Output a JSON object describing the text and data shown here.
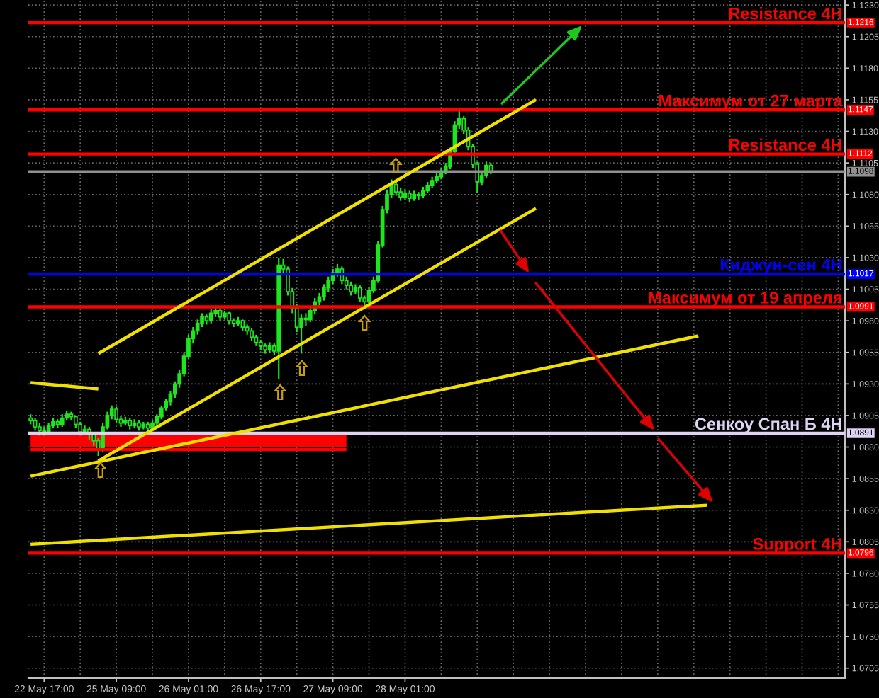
{
  "chart_data": {
    "type": "candlestick",
    "color": "#1ee61e",
    "categories": [
      null,
      null,
      null,
      "22 May 17:00",
      null,
      null,
      null,
      null,
      null,
      null,
      null,
      null,
      null,
      null,
      null,
      null,
      null,
      null,
      null,
      "25 May 09:00",
      null,
      null,
      null,
      null,
      null,
      null,
      null,
      null,
      null,
      null,
      null,
      null,
      null,
      null,
      null,
      "26 May 01:00",
      null,
      null,
      null,
      null,
      null,
      null,
      null,
      null,
      null,
      null,
      null,
      null,
      null,
      null,
      null,
      "26 May 17:00",
      null,
      null,
      null,
      null,
      null,
      null,
      null,
      null,
      null,
      null,
      null,
      null,
      null,
      null,
      null,
      "27 May 09:00",
      null,
      null,
      null,
      null,
      null,
      null,
      null,
      null,
      null,
      null,
      null,
      null,
      null,
      null,
      null,
      "28 May 01:00",
      null,
      null,
      null,
      null,
      null,
      null,
      null,
      null,
      null,
      null,
      null,
      null,
      null,
      null,
      null,
      null,
      null,
      null,
      null,
      null,
      null,
      null,
      null,
      null,
      null,
      null,
      null,
      null,
      null,
      null,
      null,
      null,
      null,
      null,
      null,
      null,
      null,
      null,
      null,
      null,
      null,
      null,
      null,
      null,
      null,
      null,
      null,
      null,
      null,
      null,
      null,
      null,
      null,
      null,
      null,
      null,
      null,
      null,
      null,
      null,
      null,
      null,
      null,
      null,
      null,
      null,
      null,
      null,
      null,
      null,
      null,
      null,
      null,
      null,
      null,
      null,
      null,
      null,
      null,
      null,
      null,
      null,
      null,
      null,
      null,
      null,
      null,
      null,
      null,
      null,
      null,
      null,
      null,
      null,
      null,
      null,
      null
    ],
    "ohlc": [
      [
        1.0903,
        1.0906,
        1.0898,
        1.0901
      ],
      [
        1.0901,
        1.0903,
        1.0893,
        1.0896
      ],
      [
        1.0896,
        1.0899,
        1.0889,
        1.0893
      ],
      [
        1.0893,
        1.0896,
        1.0889,
        1.0892
      ],
      [
        1.0892,
        1.0899,
        1.089,
        1.0897
      ],
      [
        1.0897,
        1.0903,
        1.0895,
        1.09
      ],
      [
        1.09,
        1.0902,
        1.0895,
        1.0898
      ],
      [
        1.0898,
        1.0906,
        1.0896,
        1.0903
      ],
      [
        1.0903,
        1.0909,
        1.0901,
        1.0906
      ],
      [
        1.0906,
        1.0908,
        1.0901,
        1.0904
      ],
      [
        1.0904,
        1.0905,
        1.0895,
        1.0898
      ],
      [
        1.0898,
        1.09,
        1.0889,
        1.0892
      ],
      [
        1.0892,
        1.0897,
        1.089,
        1.0894
      ],
      [
        1.0894,
        1.0896,
        1.0886,
        1.089
      ],
      [
        1.089,
        1.0892,
        1.0881,
        1.0885
      ],
      [
        1.0885,
        1.0887,
        1.0873,
        1.0878
      ],
      [
        1.0878,
        1.0899,
        1.0876,
        1.0896
      ],
      [
        1.0896,
        1.0908,
        1.0894,
        1.0905
      ],
      [
        1.0905,
        1.0913,
        1.0902,
        1.091
      ],
      [
        1.091,
        1.0912,
        1.0899,
        1.0902
      ],
      [
        1.0902,
        1.0905,
        1.0896,
        1.0899
      ],
      [
        1.0899,
        1.0904,
        1.0897,
        1.0901
      ],
      [
        1.0901,
        1.0903,
        1.0894,
        1.0897
      ],
      [
        1.0897,
        1.0902,
        1.0895,
        1.0899
      ],
      [
        1.0899,
        1.0901,
        1.0893,
        1.0896
      ],
      [
        1.0896,
        1.09,
        1.0894,
        1.0898
      ],
      [
        1.0898,
        1.09,
        1.0892,
        1.0895
      ],
      [
        1.0895,
        1.0901,
        1.0893,
        1.0899
      ],
      [
        1.0899,
        1.0906,
        1.0897,
        1.0904
      ],
      [
        1.0904,
        1.0913,
        1.0902,
        1.0911
      ],
      [
        1.0911,
        1.0918,
        1.0909,
        1.0916
      ],
      [
        1.0916,
        1.0924,
        1.0913,
        1.0922
      ],
      [
        1.0922,
        1.0932,
        1.0919,
        1.093
      ],
      [
        1.093,
        1.0941,
        1.0927,
        1.0938
      ],
      [
        1.0938,
        1.0955,
        1.0936,
        1.0952
      ],
      [
        1.0952,
        1.0969,
        1.095,
        1.0966
      ],
      [
        1.0966,
        1.0975,
        1.0962,
        1.0972
      ],
      [
        1.0972,
        1.0981,
        1.0969,
        1.0978
      ],
      [
        1.0978,
        1.0986,
        1.0975,
        1.0983
      ],
      [
        1.0983,
        1.0985,
        1.0977,
        1.098
      ],
      [
        1.098,
        1.0989,
        1.0978,
        1.0986
      ],
      [
        1.0986,
        1.0992,
        1.0983,
        1.0988
      ],
      [
        1.0988,
        1.099,
        1.098,
        1.0983
      ],
      [
        1.0983,
        1.0988,
        1.0981,
        1.0986
      ],
      [
        1.0986,
        1.0987,
        1.0977,
        1.098
      ],
      [
        1.098,
        1.0982,
        1.0975,
        1.0978
      ],
      [
        1.0978,
        1.0983,
        1.0976,
        1.098
      ],
      [
        1.098,
        1.0981,
        1.0972,
        1.0975
      ],
      [
        1.0975,
        1.0977,
        1.0969,
        1.0972
      ],
      [
        1.0972,
        1.0974,
        1.0964,
        1.0967
      ],
      [
        1.0967,
        1.0969,
        1.096,
        1.0963
      ],
      [
        1.0963,
        1.0965,
        1.0957,
        1.096
      ],
      [
        1.096,
        1.0962,
        1.0954,
        1.0957
      ],
      [
        1.0957,
        1.0963,
        1.0955,
        1.096
      ],
      [
        1.096,
        1.0962,
        1.0953,
        1.0956
      ],
      [
        1.0956,
        1.103,
        1.0934,
        1.1024
      ],
      [
        1.1024,
        1.1029,
        1.1016,
        1.1021
      ],
      [
        1.1021,
        1.1023,
        1.1,
        1.1003
      ],
      [
        1.1003,
        1.1006,
        1.0986,
        1.099
      ],
      [
        1.099,
        1.0993,
        1.0971,
        1.0975
      ],
      [
        1.0975,
        1.0985,
        1.0954,
        1.0982
      ],
      [
        1.0982,
        1.0986,
        1.0976,
        1.0981
      ],
      [
        1.0981,
        1.0991,
        1.0979,
        1.0988
      ],
      [
        1.0988,
        1.0998,
        1.0985,
        1.0995
      ],
      [
        1.0995,
        1.1002,
        1.0992,
        1.0999
      ],
      [
        1.0999,
        1.1009,
        1.0996,
        1.1006
      ],
      [
        1.1006,
        1.1015,
        1.1003,
        1.1012
      ],
      [
        1.1012,
        1.1021,
        1.1009,
        1.1018
      ],
      [
        1.1018,
        1.1025,
        1.1015,
        1.1021
      ],
      [
        1.1021,
        1.1023,
        1.1009,
        1.1012
      ],
      [
        1.1012,
        1.1015,
        1.1005,
        1.1008
      ],
      [
        1.1008,
        1.1011,
        1.1,
        1.1003
      ],
      [
        1.1003,
        1.1009,
        1.1001,
        1.1006
      ],
      [
        1.1006,
        1.1008,
        1.0995,
        1.0998
      ],
      [
        1.0998,
        1.1,
        1.0991,
        1.0995
      ],
      [
        1.0995,
        1.1007,
        1.0993,
        1.1004
      ],
      [
        1.1004,
        1.1015,
        1.1002,
        1.1012
      ],
      [
        1.1012,
        1.1043,
        1.101,
        1.104
      ],
      [
        1.104,
        1.1071,
        1.1038,
        1.1068
      ],
      [
        1.1068,
        1.1084,
        1.1065,
        1.108
      ],
      [
        1.108,
        1.1092,
        1.1077,
        1.1088
      ],
      [
        1.1088,
        1.109,
        1.1079,
        1.1082
      ],
      [
        1.1082,
        1.1085,
        1.1075,
        1.1078
      ],
      [
        1.1078,
        1.1084,
        1.1076,
        1.1081
      ],
      [
        1.1081,
        1.1083,
        1.1074,
        1.1077
      ],
      [
        1.1077,
        1.1083,
        1.1075,
        1.108
      ],
      [
        1.108,
        1.1082,
        1.1076,
        1.1079
      ],
      [
        1.1079,
        1.1086,
        1.1077,
        1.1083
      ],
      [
        1.1083,
        1.109,
        1.1081,
        1.1087
      ],
      [
        1.1087,
        1.1094,
        1.1085,
        1.1091
      ],
      [
        1.1091,
        1.1097,
        1.1089,
        1.1094
      ],
      [
        1.1094,
        1.1101,
        1.1092,
        1.1098
      ],
      [
        1.1098,
        1.1105,
        1.1096,
        1.1102
      ],
      [
        1.1102,
        1.1117,
        1.11,
        1.1114
      ],
      [
        1.1114,
        1.1138,
        1.1112,
        1.1135
      ],
      [
        1.1135,
        1.1146,
        1.1132,
        1.114
      ],
      [
        1.114,
        1.1142,
        1.1128,
        1.1131
      ],
      [
        1.1131,
        1.1133,
        1.1115,
        1.1118
      ],
      [
        1.1118,
        1.112,
        1.1101,
        1.1104
      ],
      [
        1.1104,
        1.1106,
        1.1081,
        1.109
      ],
      [
        1.109,
        1.1098,
        1.1087,
        1.1095
      ],
      [
        1.1095,
        1.1106,
        1.1093,
        1.1103
      ],
      [
        1.1103,
        1.1105,
        1.1096,
        1.1098
      ],
      null,
      null,
      null,
      null,
      null,
      null,
      null,
      null,
      null,
      null,
      null,
      null,
      null,
      null,
      null,
      null,
      null,
      null,
      null,
      null,
      null,
      null,
      null,
      null,
      null,
      null,
      null,
      null,
      null,
      null,
      null,
      null,
      null,
      null,
      null,
      null,
      null,
      null,
      null,
      null,
      null,
      null,
      null,
      null,
      null,
      null,
      null,
      null,
      null,
      null,
      null,
      null,
      null,
      null,
      null,
      null,
      null,
      null,
      null,
      null,
      null,
      null,
      null,
      null,
      null,
      null,
      null,
      null,
      null,
      null,
      null,
      null,
      null,
      null,
      null,
      null,
      null,
      null
    ],
    "series": [
      {
        "type": "line",
        "color": "#ff0000",
        "values": [
          1.0878,
          null,
          null,
          null,
          null,
          null,
          null,
          null,
          null,
          null,
          null,
          null,
          null,
          null,
          null,
          null,
          null,
          null,
          null,
          null,
          null,
          null,
          null,
          null,
          null,
          null,
          null,
          null,
          null,
          null,
          null,
          null,
          null,
          null,
          null,
          null,
          null,
          null,
          null,
          null,
          null,
          null,
          null,
          null,
          null,
          null,
          null,
          null,
          null,
          null,
          null,
          null,
          null,
          null,
          null,
          null,
          null,
          null,
          null,
          null,
          null,
          null,
          null,
          null,
          null,
          null,
          null,
          null,
          null,
          null,
          1.0878,
          null,
          null,
          null,
          null,
          null,
          null,
          null,
          null,
          null,
          null,
          null,
          null,
          null,
          null,
          null,
          null,
          null,
          null,
          null,
          null,
          null,
          null,
          null,
          null,
          null,
          null,
          null,
          null,
          null,
          null,
          null,
          null,
          null,
          null,
          null,
          null,
          null,
          null,
          null,
          null,
          null,
          null,
          null,
          null,
          null,
          null,
          null,
          null,
          null,
          null,
          null,
          null,
          null,
          null,
          null,
          null,
          null,
          null,
          null,
          null,
          null,
          null,
          null,
          null,
          null,
          null,
          null,
          null,
          null,
          null,
          null,
          null,
          null,
          null,
          null,
          null,
          null,
          null,
          null,
          null,
          null,
          null,
          null,
          null,
          null,
          null,
          null,
          null,
          null,
          null,
          null,
          null,
          null,
          null,
          null,
          null,
          null,
          null,
          null,
          null,
          null,
          null,
          null,
          null,
          null,
          null,
          null,
          null,
          null,
          null
        ],
        "lower": [
          1.088,
          null,
          null,
          null,
          null,
          null,
          null,
          null,
          null,
          null,
          null,
          null,
          null,
          null,
          null,
          null,
          null,
          null,
          null,
          null,
          null,
          null,
          null,
          null,
          null,
          null,
          null,
          null,
          null,
          null,
          null,
          null,
          null,
          null,
          null,
          null,
          null,
          null,
          null,
          null,
          null,
          null,
          null,
          null,
          null,
          null,
          null,
          null,
          null,
          null,
          null,
          null,
          null,
          null,
          null,
          null,
          null,
          null,
          null,
          null,
          null,
          null,
          null,
          null,
          null,
          null,
          null,
          null,
          null,
          null,
          1.088,
          null,
          null,
          null,
          null,
          null,
          null,
          null,
          null,
          null,
          null,
          null,
          null,
          null,
          null,
          null,
          null,
          null,
          null,
          null,
          null,
          null,
          null,
          null,
          null,
          null,
          null,
          null,
          null,
          null,
          null,
          null,
          null,
          null,
          null,
          null,
          null,
          null,
          null,
          null,
          null,
          null,
          null,
          null,
          null,
          null,
          null,
          null,
          null,
          null,
          null,
          null,
          null,
          null,
          null,
          null,
          null,
          null,
          null,
          null,
          null,
          null,
          null,
          null,
          null,
          null,
          null,
          null,
          null,
          null,
          null,
          null,
          null,
          null,
          null,
          null,
          null,
          null,
          null,
          null,
          null,
          null,
          null,
          null,
          null,
          null,
          null,
          null,
          null,
          null,
          null,
          null,
          null,
          null,
          null,
          null,
          null,
          null,
          null,
          null,
          null,
          null,
          null,
          null,
          null,
          null,
          null,
          null,
          null,
          null,
          null
        ],
        "upper": [
          1.0892,
          null,
          null,
          null,
          null,
          null,
          null,
          null,
          null,
          null,
          null,
          null,
          null,
          null,
          null,
          null,
          null,
          null,
          null,
          null,
          null,
          null,
          null,
          null,
          null,
          null,
          null,
          null,
          null,
          null,
          null,
          null,
          null,
          null,
          null,
          null,
          null,
          null,
          null,
          null,
          null,
          null,
          null,
          null,
          null,
          null,
          null,
          null,
          null,
          null,
          null,
          null,
          null,
          null,
          null,
          null,
          null,
          null,
          null,
          null,
          null,
          null,
          null,
          null,
          null,
          null,
          null,
          null,
          null,
          null,
          1.0892,
          null,
          null,
          null,
          null,
          null,
          null,
          null,
          null,
          null,
          null,
          null,
          null,
          null,
          null,
          null,
          null,
          null,
          null,
          null,
          null,
          null,
          null,
          null,
          null,
          null,
          null,
          null,
          null,
          null,
          null,
          null,
          null,
          null,
          null,
          null,
          null,
          null,
          null,
          null,
          null,
          null,
          null,
          null,
          null,
          null,
          null,
          null,
          null,
          null,
          null,
          null,
          null,
          null,
          null,
          null,
          null,
          null,
          null,
          null,
          null,
          null,
          null,
          null,
          null,
          null,
          null,
          null,
          null,
          null,
          null,
          null,
          null,
          null,
          null,
          null,
          null,
          null,
          null,
          null,
          null,
          null,
          null,
          null,
          null,
          null,
          null,
          null,
          null,
          null,
          null,
          null,
          null,
          null,
          null,
          null,
          null,
          null,
          null,
          null,
          null,
          null,
          null,
          null,
          null,
          null,
          null,
          null,
          null,
          null,
          null
        ]
      },
      {
        "type": "line",
        "color": "#f0e000",
        "values": [
          null,
          null,
          null,
          null,
          null,
          null,
          null,
          null,
          null,
          null,
          null,
          null,
          null,
          null,
          null,
          1.0954,
          null,
          null,
          null,
          null,
          null,
          null,
          null,
          null,
          null,
          null,
          null,
          null,
          null,
          null,
          null,
          null,
          null,
          null,
          null,
          null,
          null,
          null,
          null,
          null,
          null,
          null,
          null,
          null,
          null,
          null,
          null,
          null,
          null,
          null,
          null,
          null,
          null,
          null,
          null,
          null,
          null,
          null,
          null,
          null,
          null,
          null,
          null,
          null,
          null,
          null,
          null,
          null,
          null,
          null,
          null,
          null,
          null,
          null,
          null,
          null,
          null,
          null,
          null,
          null,
          null,
          null,
          null,
          null,
          null,
          null,
          null,
          null,
          null,
          null,
          null,
          null,
          null,
          null,
          null,
          null,
          null,
          null,
          null,
          null,
          null,
          null,
          null,
          null,
          null,
          null,
          null,
          null,
          null,
          null,
          null,
          null,
          1.1155,
          null,
          null,
          null,
          null,
          null,
          null,
          null,
          null,
          null,
          null,
          null,
          null,
          null,
          null,
          null,
          null,
          null,
          null,
          null,
          null,
          null,
          null,
          null,
          null,
          null,
          null,
          null,
          null,
          null,
          null,
          null,
          null,
          null,
          null,
          null,
          null,
          null,
          null,
          null,
          null,
          null,
          null,
          null,
          null,
          null,
          null,
          null,
          null,
          null,
          null,
          null,
          null,
          null,
          null,
          null,
          null,
          null,
          null,
          null,
          null,
          null,
          null,
          null,
          null,
          null,
          null,
          null,
          null
        ]
      },
      {
        "type": "line",
        "color": "#f0e000",
        "values": [
          null,
          null,
          null,
          null,
          null,
          null,
          null,
          null,
          null,
          null,
          null,
          null,
          null,
          null,
          null,
          1.0869,
          null,
          null,
          null,
          null,
          null,
          null,
          null,
          null,
          null,
          null,
          null,
          null,
          null,
          null,
          null,
          null,
          null,
          null,
          null,
          null,
          null,
          null,
          null,
          null,
          null,
          null,
          null,
          null,
          null,
          null,
          null,
          null,
          null,
          null,
          null,
          null,
          null,
          null,
          null,
          null,
          null,
          null,
          null,
          null,
          null,
          null,
          null,
          null,
          null,
          null,
          null,
          null,
          null,
          null,
          null,
          null,
          null,
          null,
          null,
          null,
          null,
          null,
          null,
          null,
          null,
          null,
          null,
          null,
          null,
          null,
          null,
          null,
          null,
          null,
          null,
          null,
          null,
          null,
          null,
          null,
          null,
          null,
          null,
          null,
          null,
          null,
          null,
          null,
          null,
          null,
          null,
          null,
          null,
          null,
          null,
          null,
          1.1069,
          null,
          null,
          null,
          null,
          null,
          null,
          null,
          null,
          null,
          null,
          null,
          null,
          null,
          null,
          null,
          null,
          null,
          null,
          null,
          null,
          null,
          null,
          null,
          null,
          null,
          null,
          null,
          null,
          null,
          null,
          null,
          null,
          null,
          null,
          null,
          null,
          null,
          null,
          null,
          null,
          null,
          null,
          null,
          null,
          null,
          null,
          null,
          null,
          null,
          null,
          null,
          null,
          null,
          null,
          null,
          null,
          null,
          null,
          null,
          null,
          null,
          null,
          null,
          null,
          null,
          null,
          null,
          null
        ]
      },
      {
        "type": "line",
        "color": "#f0e000",
        "values": [
          1.0857,
          null,
          null,
          null,
          null,
          null,
          null,
          null,
          null,
          null,
          null,
          null,
          null,
          null,
          null,
          null,
          null,
          null,
          null,
          null,
          null,
          null,
          null,
          null,
          null,
          null,
          null,
          null,
          null,
          null,
          null,
          null,
          null,
          null,
          null,
          null,
          null,
          null,
          null,
          null,
          null,
          null,
          null,
          null,
          null,
          null,
          null,
          null,
          null,
          null,
          null,
          null,
          null,
          null,
          null,
          null,
          null,
          null,
          null,
          null,
          null,
          null,
          null,
          null,
          null,
          null,
          null,
          null,
          null,
          null,
          null,
          null,
          null,
          null,
          null,
          null,
          null,
          null,
          null,
          null,
          null,
          null,
          null,
          null,
          null,
          null,
          null,
          null,
          null,
          null,
          null,
          null,
          null,
          null,
          null,
          null,
          null,
          null,
          null,
          null,
          null,
          null,
          null,
          null,
          null,
          null,
          null,
          null,
          null,
          null,
          null,
          null,
          null,
          null,
          null,
          null,
          null,
          null,
          null,
          null,
          null,
          null,
          null,
          null,
          null,
          null,
          null,
          null,
          null,
          null,
          null,
          null,
          null,
          null,
          null,
          null,
          null,
          null,
          null,
          null,
          null,
          null,
          null,
          null,
          null,
          null,
          null,
          null,
          1.0968,
          null,
          null,
          null,
          null,
          null,
          null,
          null,
          null,
          null,
          null,
          null,
          null,
          null,
          null,
          null,
          null,
          null,
          null,
          null,
          null,
          null,
          null,
          null,
          null,
          null,
          null,
          null,
          null,
          null,
          null,
          null,
          null
        ]
      },
      {
        "type": "line",
        "color": "#f0e000",
        "values": [
          1.0931,
          null,
          null,
          null,
          null,
          null,
          null,
          null,
          null,
          null,
          null,
          null,
          null,
          null,
          null,
          1.0926,
          null,
          null,
          null,
          null,
          null,
          null,
          null,
          null,
          null,
          null,
          null,
          null,
          null,
          null,
          null,
          null,
          null,
          null,
          null,
          null,
          null,
          null,
          null,
          null,
          null,
          null,
          null,
          null,
          null,
          null,
          null,
          null,
          null,
          null,
          null,
          null,
          null,
          null,
          null,
          null,
          null,
          null,
          null,
          null,
          null,
          null,
          null,
          null,
          null,
          null,
          null,
          null,
          null,
          null,
          null,
          null,
          null,
          null,
          null,
          null,
          null,
          null,
          null,
          null,
          null,
          null,
          null,
          null,
          null,
          null,
          null,
          null,
          null,
          null,
          null,
          null,
          null,
          null,
          null,
          null,
          null,
          null,
          null,
          null,
          null,
          null,
          null,
          null,
          null,
          null,
          null,
          null,
          null,
          null,
          null,
          null,
          null,
          null,
          null,
          null,
          null,
          null,
          null,
          null,
          null,
          null,
          null,
          null,
          null,
          null,
          null,
          null,
          null,
          null,
          null,
          null,
          null,
          null,
          null,
          null,
          null,
          null,
          null,
          null,
          null,
          null,
          null,
          null,
          null,
          null,
          null,
          null,
          null,
          null,
          null,
          null,
          null,
          null,
          null,
          null,
          null,
          null,
          null,
          null,
          null,
          null,
          null,
          null,
          null,
          null,
          null,
          null,
          null,
          null,
          null,
          null,
          null,
          null,
          null,
          null,
          null,
          null,
          null,
          null,
          null
        ]
      },
      {
        "type": "line",
        "color": "#f0e000",
        "values": [
          1.0803,
          null,
          null,
          null,
          null,
          null,
          null,
          null,
          null,
          null,
          null,
          null,
          null,
          null,
          null,
          null,
          null,
          null,
          null,
          null,
          null,
          null,
          null,
          null,
          null,
          null,
          null,
          null,
          null,
          null,
          null,
          null,
          null,
          null,
          null,
          null,
          null,
          null,
          null,
          null,
          null,
          null,
          null,
          null,
          null,
          null,
          null,
          null,
          null,
          null,
          null,
          null,
          null,
          null,
          null,
          null,
          null,
          null,
          null,
          null,
          null,
          null,
          null,
          null,
          null,
          null,
          null,
          null,
          null,
          null,
          null,
          null,
          null,
          null,
          null,
          null,
          null,
          null,
          null,
          null,
          null,
          null,
          null,
          null,
          null,
          null,
          null,
          null,
          null,
          null,
          null,
          null,
          null,
          null,
          null,
          null,
          null,
          null,
          null,
          null,
          null,
          null,
          null,
          null,
          null,
          null,
          null,
          null,
          null,
          null,
          null,
          null,
          null,
          null,
          null,
          null,
          null,
          null,
          null,
          null,
          null,
          null,
          null,
          null,
          null,
          null,
          null,
          null,
          null,
          null,
          null,
          null,
          null,
          null,
          null,
          null,
          null,
          null,
          null,
          null,
          null,
          null,
          null,
          null,
          null,
          null,
          null,
          null,
          null,
          null,
          1.0834,
          null,
          null,
          null,
          null,
          null,
          null,
          null,
          null,
          null,
          null,
          null,
          null,
          null,
          null,
          null,
          null,
          null,
          null,
          null,
          null,
          null,
          null,
          null,
          null,
          null,
          null,
          null,
          null,
          null,
          null
        ]
      }
    ],
    "ref_lines": [
      {
        "axis": "y",
        "value": 1.1216,
        "label": "Resistance 4H",
        "color": "#ff0000"
      },
      {
        "axis": "y",
        "value": 1.1147,
        "label": "Максимум от 27 марта",
        "color": "#ff0000"
      },
      {
        "axis": "y",
        "value": 1.1112,
        "label": "Resistance 4H",
        "color": "#ff0000"
      },
      {
        "axis": "y",
        "value": 1.1098,
        "color": "#909090"
      },
      {
        "axis": "y",
        "value": 1.1017,
        "label": "Киджун-сен 4H",
        "color": "#0000ff"
      },
      {
        "axis": "y",
        "value": 1.0991,
        "label": "Максимум от 19 апреля",
        "color": "#ff0000"
      },
      {
        "axis": "y",
        "value": 1.0891,
        "label": "Сенкоу Спан Б 4H",
        "color": "#e0d4f4"
      },
      {
        "axis": "y",
        "value": 1.0796,
        "label": "Support 4H",
        "color": "#ff0000"
      }
    ],
    "annotations": [
      {
        "text": "1.1216",
        "y": 1.1216
      },
      {
        "text": "1.1147",
        "y": 1.1147
      },
      {
        "text": "1.1112",
        "y": 1.1112
      },
      {
        "text": "1.1098",
        "y": 1.1098
      },
      {
        "text": "1.1017",
        "y": 1.1017
      },
      {
        "text": "1.0991",
        "y": 1.0991
      },
      {
        "text": "1.0891",
        "y": 1.0891
      },
      {
        "text": "1.0796",
        "y": 1.0796
      }
    ],
    "ylim": [
      1.0697,
      1.1234
    ],
    "yticks": [
      {
        "value": 1.0705,
        "label": "1.0705"
      },
      {
        "value": 1.073,
        "label": "1.0730"
      },
      {
        "value": 1.0755,
        "label": "1.0755"
      },
      {
        "value": 1.078,
        "label": "1.0780"
      },
      {
        "value": 1.0805,
        "label": "1.0805"
      },
      {
        "value": 1.083,
        "label": "1.0830"
      },
      {
        "value": 1.0855,
        "label": "1.0855"
      },
      {
        "value": 1.088,
        "label": "1.0880"
      },
      {
        "value": 1.0905,
        "label": "1.0905"
      },
      {
        "value": 1.093,
        "label": "1.0930"
      },
      {
        "value": 1.0955,
        "label": "1.0955"
      },
      {
        "value": 1.098,
        "label": "1.0980"
      },
      {
        "value": 1.1005,
        "label": "1.1005"
      },
      {
        "value": 1.103,
        "label": "1.1030"
      },
      {
        "value": 1.1055,
        "label": "1.1055"
      },
      {
        "value": 1.108,
        "label": "1.1080"
      },
      {
        "value": 1.1105,
        "label": "1.1105"
      },
      {
        "value": 1.113,
        "label": "1.1130"
      },
      {
        "value": 1.1155,
        "label": "1.1155"
      },
      {
        "value": 1.118,
        "label": "1.1180"
      },
      {
        "value": 1.1205,
        "label": "1.1205"
      },
      {
        "value": 1.123,
        "label": "1.1230"
      }
    ],
    "grid": true
  }
}
